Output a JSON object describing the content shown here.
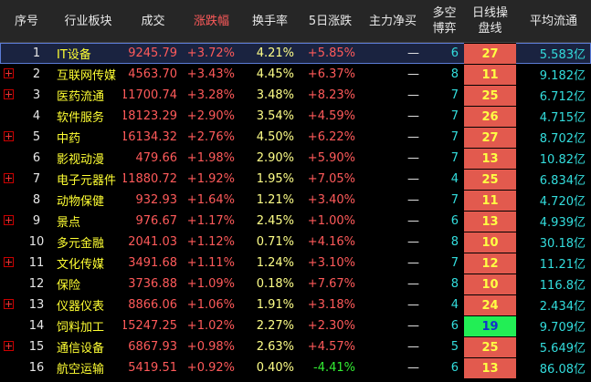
{
  "table": {
    "header": [
      "序号",
      "行业板块",
      "成交",
      "涨跌幅",
      "换手率",
      "5日涨跌",
      "主力净买",
      "多空博弈",
      "日线操盘线",
      "平均流通"
    ],
    "rows": [
      [
        "1",
        "IT设备",
        "9245.79",
        "+3.72%",
        "4.21%",
        "+5.85%",
        "—",
        "6",
        "27",
        "5.583亿"
      ],
      [
        "2",
        "互联网传媒",
        "4563.70",
        "+3.43%",
        "4.45%",
        "+6.37%",
        "—",
        "8",
        "11",
        "9.182亿"
      ],
      [
        "3",
        "医药流通",
        "11700.74",
        "+3.28%",
        "3.48%",
        "+8.23%",
        "—",
        "7",
        "25",
        "6.712亿"
      ],
      [
        "4",
        "软件服务",
        "18123.29",
        "+2.90%",
        "3.54%",
        "+4.59%",
        "—",
        "7",
        "26",
        "4.715亿"
      ],
      [
        "5",
        "中药",
        "16134.32",
        "+2.76%",
        "4.50%",
        "+6.22%",
        "—",
        "7",
        "27",
        "8.702亿"
      ],
      [
        "6",
        "影视动漫",
        "479.66",
        "+1.98%",
        "2.90%",
        "+5.90%",
        "—",
        "7",
        "13",
        "10.82亿"
      ],
      [
        "7",
        "电子元器件",
        "11880.72",
        "+1.92%",
        "1.95%",
        "+7.05%",
        "—",
        "4",
        "25",
        "6.834亿"
      ],
      [
        "8",
        "动物保健",
        "932.93",
        "+1.64%",
        "1.21%",
        "+3.40%",
        "—",
        "7",
        "11",
        "4.720亿"
      ],
      [
        "9",
        "景点",
        "976.67",
        "+1.17%",
        "2.45%",
        "+1.00%",
        "—",
        "6",
        "13",
        "4.939亿"
      ],
      [
        "10",
        "多元金融",
        "2041.03",
        "+1.12%",
        "0.71%",
        "+4.16%",
        "—",
        "8",
        "10",
        "30.18亿"
      ],
      [
        "11",
        "文化传媒",
        "3491.68",
        "+1.11%",
        "1.24%",
        "+3.10%",
        "—",
        "7",
        "12",
        "11.21亿"
      ],
      [
        "12",
        "保险",
        "3736.88",
        "+1.09%",
        "0.18%",
        "+7.67%",
        "—",
        "8",
        "10",
        "116.8亿"
      ],
      [
        "13",
        "仪器仪表",
        "8866.06",
        "+1.06%",
        "1.91%",
        "+3.18%",
        "—",
        "4",
        "24",
        "2.434亿"
      ],
      [
        "14",
        "饲料加工",
        "15247.25",
        "+1.02%",
        "2.27%",
        "+2.30%",
        "—",
        "6",
        "19",
        "9.709亿"
      ],
      [
        "15",
        "通信设备",
        "6867.93",
        "+0.98%",
        "2.63%",
        "+4.57%",
        "—",
        "5",
        "25",
        "5.649亿"
      ],
      [
        "16",
        "航空运输",
        "5419.51",
        "+0.92%",
        "0.40%",
        "-4.41%",
        "—",
        "6",
        "13",
        "86.08亿"
      ]
    ]
  }
}
